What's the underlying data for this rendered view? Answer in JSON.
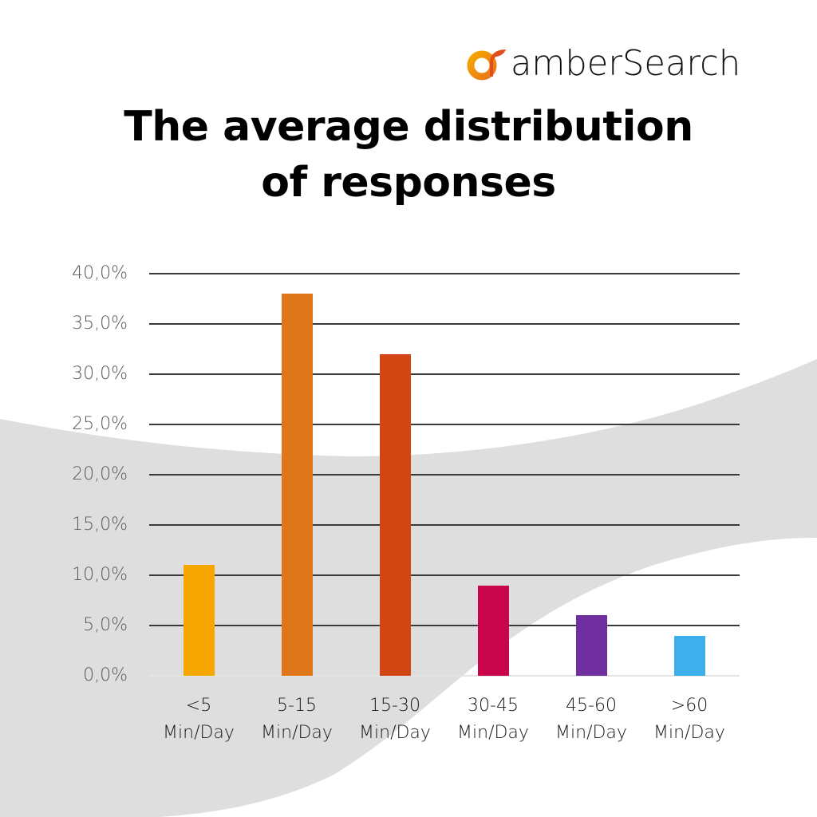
{
  "brand": {
    "name": "amberSearch",
    "logo_colors": {
      "ring_start": "#F6A800",
      "ring_end": "#E8751A",
      "swoosh": "#E0501C"
    }
  },
  "title": {
    "line1": "The average distribution",
    "line2": "of responses"
  },
  "y_axis": {
    "ticks": [
      "40,0%",
      "35,0%",
      "30,0%",
      "25,0%",
      "20,0%",
      "15,0%",
      "10,0%",
      "5,0%",
      "0,0%"
    ]
  },
  "x_axis": {
    "labels": [
      {
        "range": "<5",
        "unit": "Min/Day"
      },
      {
        "range": "5-15",
        "unit": "Min/Day"
      },
      {
        "range": "15-30",
        "unit": "Min/Day"
      },
      {
        "range": "30-45",
        "unit": "Min/Day"
      },
      {
        "range": "45-60",
        "unit": "Min/Day"
      },
      {
        "range": ">60",
        "unit": "Min/Day"
      }
    ]
  },
  "colors": {
    "background": "#FFFFFF",
    "wave": "#DEDEDE",
    "gridline": "#3A3A3A",
    "bars": [
      "#F5A700",
      "#E0761A",
      "#D24614",
      "#C8054A",
      "#7030A0",
      "#3DB0EC"
    ]
  },
  "chart_data": {
    "type": "bar",
    "title": "The average distribution of responses",
    "xlabel": "",
    "ylabel": "",
    "categories": [
      "<5 Min/Day",
      "5-15 Min/Day",
      "15-30 Min/Day",
      "30-45 Min/Day",
      "45-60 Min/Day",
      ">60 Min/Day"
    ],
    "values": [
      11.0,
      38.0,
      32.0,
      9.0,
      6.0,
      4.0
    ],
    "unit": "%",
    "ylim": [
      0,
      40
    ],
    "ytick_step": 5,
    "grid": true,
    "legend": null,
    "bar_colors": [
      "#F5A700",
      "#E0761A",
      "#D24614",
      "#C8054A",
      "#7030A0",
      "#3DB0EC"
    ]
  }
}
